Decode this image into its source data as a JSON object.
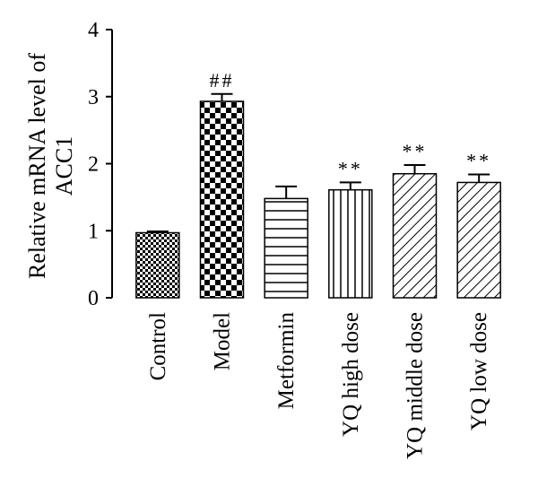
{
  "chart_data": {
    "type": "bar",
    "title": "",
    "xlabel": "",
    "ylabel_lines": [
      "Relative mRNA level of",
      "ACC1"
    ],
    "ylim": [
      0,
      4
    ],
    "yticks": [
      0,
      1,
      2,
      3,
      4
    ],
    "grid": false,
    "categories": [
      "Control",
      "Model",
      "Metformin",
      "YQ high dose",
      "YQ middle dose",
      "YQ low dose"
    ],
    "values": [
      0.97,
      2.93,
      1.48,
      1.61,
      1.85,
      1.72
    ],
    "errors": [
      0.02,
      0.11,
      0.18,
      0.11,
      0.13,
      0.12
    ],
    "annotations": [
      "",
      "##",
      "",
      "**",
      "**",
      "**"
    ],
    "patterns": [
      "fine-check",
      "coarse-check",
      "horizontal-lines",
      "vertical-lines",
      "diagonal-lines",
      "diagonal-lines"
    ]
  }
}
